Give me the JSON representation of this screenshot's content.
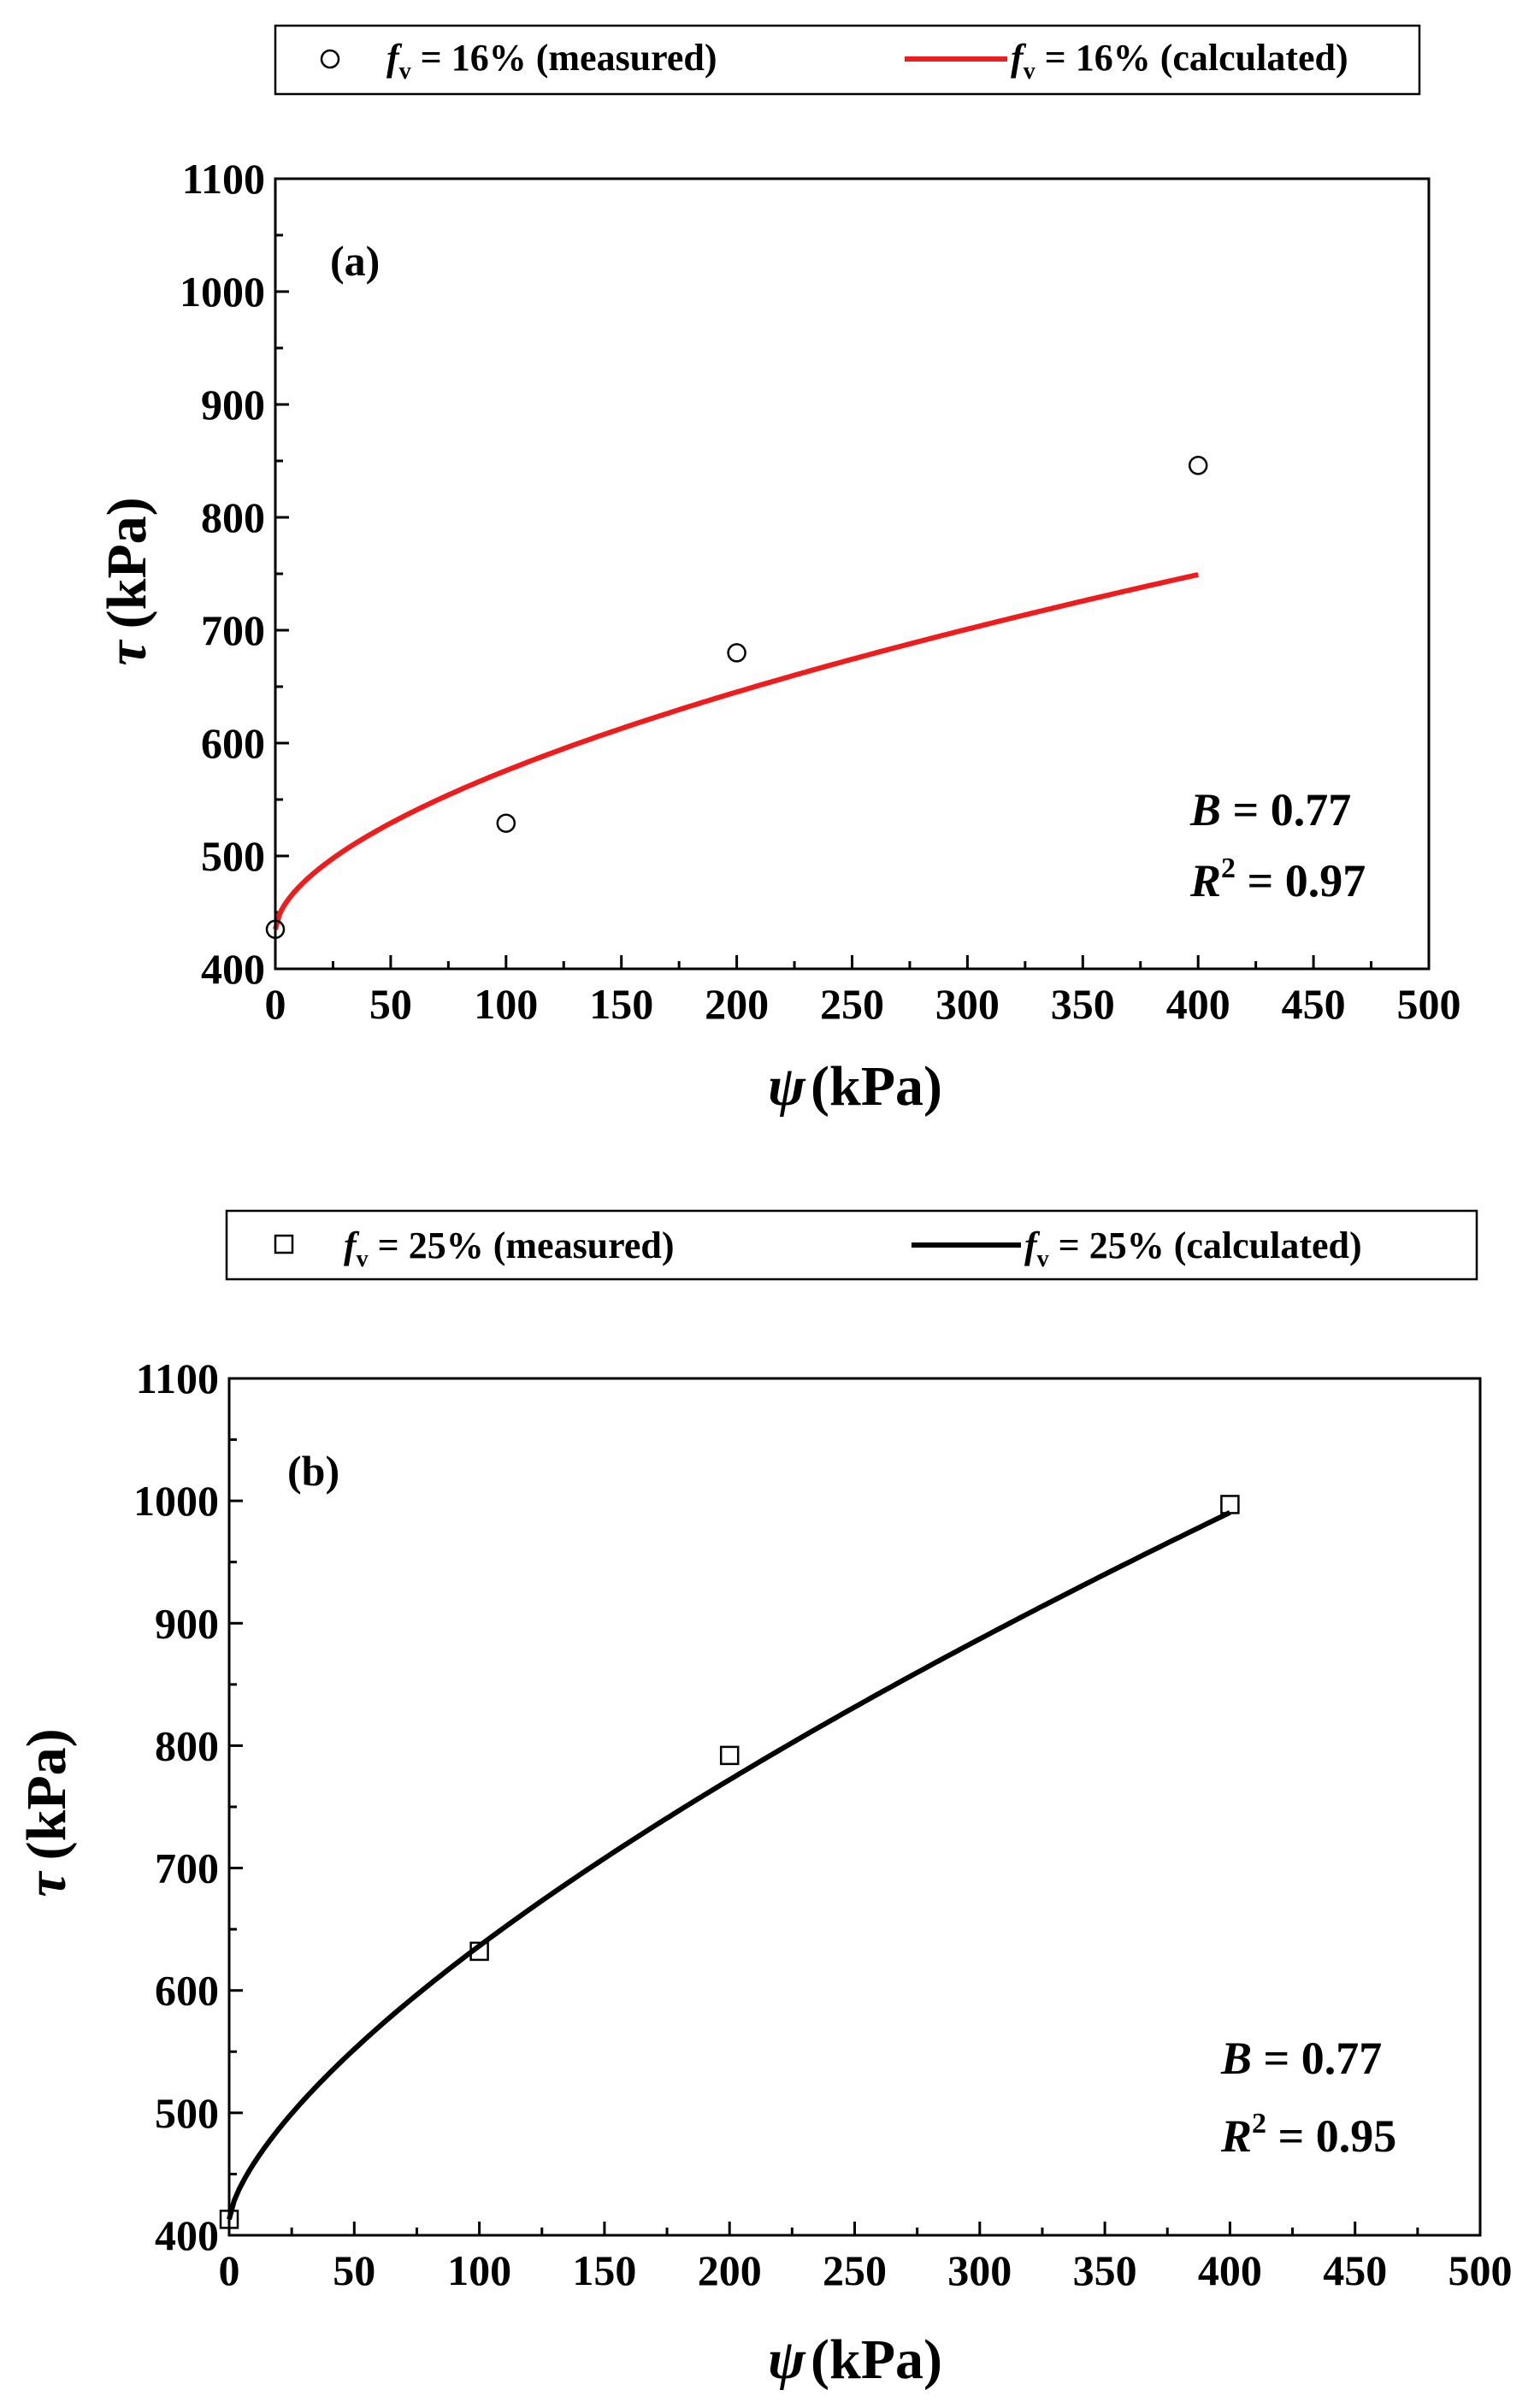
{
  "chart_data": [
    {
      "panel_label": "(a)",
      "type": "scatter",
      "xlabel_symbol": "ψ",
      "xlabel_unit": "(kPa)",
      "ylabel_symbol": "τ",
      "ylabel_unit": "(kPa)",
      "xlim": [
        0,
        500
      ],
      "ylim": [
        400,
        1100
      ],
      "xticks": [
        "0",
        "50",
        "100",
        "150",
        "200",
        "250",
        "300",
        "350",
        "400",
        "450",
        "500"
      ],
      "yticks": [
        "400",
        "500",
        "600",
        "700",
        "800",
        "900",
        "1000",
        "1100"
      ],
      "legend": {
        "measured": {
          "symbol": "f",
          "sub": "v",
          "text": " = 16% (measured)"
        },
        "calculated": {
          "symbol": "f",
          "sub": "v",
          "text": " = 16% (calculated)"
        }
      },
      "line_color": "#ee1c1c",
      "marker": "circle",
      "series": [
        {
          "name": "fv = 16% (measured)",
          "x": [
            0,
            100,
            200,
            400
          ],
          "y": [
            435,
            529,
            680,
            846
          ]
        },
        {
          "name": "fv = 16% (calculated)",
          "curve": {
            "y0": 435,
            "coef": 9.73,
            "exp": 0.58
          },
          "x_range": [
            0,
            400
          ]
        }
      ],
      "annotations": {
        "B_label": "B",
        "B_value": " = 0.77",
        "R_label": "R",
        "R_sup": "2",
        "R_value": " = 0.97"
      }
    },
    {
      "panel_label": "(b)",
      "type": "scatter",
      "xlabel_symbol": "ψ",
      "xlabel_unit": "(kPa)",
      "ylabel_symbol": "τ",
      "ylabel_unit": "(kPa)",
      "xlim": [
        0,
        500
      ],
      "ylim": [
        400,
        1100
      ],
      "xticks": [
        "0",
        "50",
        "100",
        "150",
        "200",
        "250",
        "300",
        "350",
        "400",
        "450",
        "500"
      ],
      "yticks": [
        "400",
        "500",
        "600",
        "700",
        "800",
        "900",
        "1000",
        "1100"
      ],
      "legend": {
        "measured": {
          "symbol": "f",
          "sub": "v",
          "text": " = 25% (measured)"
        },
        "calculated": {
          "symbol": "f",
          "sub": "v",
          "text": " = 25% (calculated)"
        }
      },
      "line_color": "#000000",
      "marker": "square",
      "series": [
        {
          "name": "fv = 25% (measured)",
          "x": [
            0,
            100,
            200,
            400
          ],
          "y": [
            413,
            632,
            792,
            997
          ]
        },
        {
          "name": "fv = 25% (calculated)",
          "curve": {
            "y0": 413,
            "coef": 9.53,
            "exp": 0.685
          },
          "x_range": [
            0,
            400
          ]
        }
      ],
      "annotations": {
        "B_label": "B",
        "B_value": " = 0.77",
        "R_label": "R",
        "R_sup": "2",
        "R_value": " = 0.95"
      }
    }
  ]
}
